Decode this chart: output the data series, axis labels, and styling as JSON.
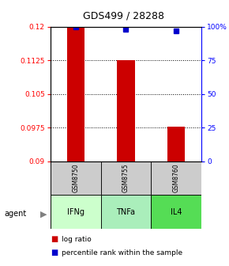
{
  "title": "GDS499 / 28288",
  "samples": [
    "GSM8750",
    "GSM8755",
    "GSM8760"
  ],
  "agents": [
    "IFNg",
    "TNFa",
    "IL4"
  ],
  "bar_values": [
    0.12,
    0.1125,
    0.0978
  ],
  "percentile_values": [
    100,
    98,
    97
  ],
  "ylim_left": [
    0.09,
    0.12
  ],
  "ylim_right": [
    0,
    100
  ],
  "yticks_left": [
    0.09,
    0.0975,
    0.105,
    0.1125,
    0.12
  ],
  "ytick_labels_left": [
    "0.09",
    "0.0975",
    "0.105",
    "0.1125",
    "0.12"
  ],
  "yticks_right": [
    0,
    25,
    50,
    75,
    100
  ],
  "ytick_labels_right": [
    "0",
    "25",
    "50",
    "75",
    "100%"
  ],
  "bar_color": "#cc0000",
  "percentile_color": "#0000cc",
  "agent_colors": [
    "#ccffcc",
    "#aaeebb",
    "#55dd55"
  ],
  "sample_box_color": "#cccccc",
  "bar_width": 0.35,
  "baseline": 0.09
}
